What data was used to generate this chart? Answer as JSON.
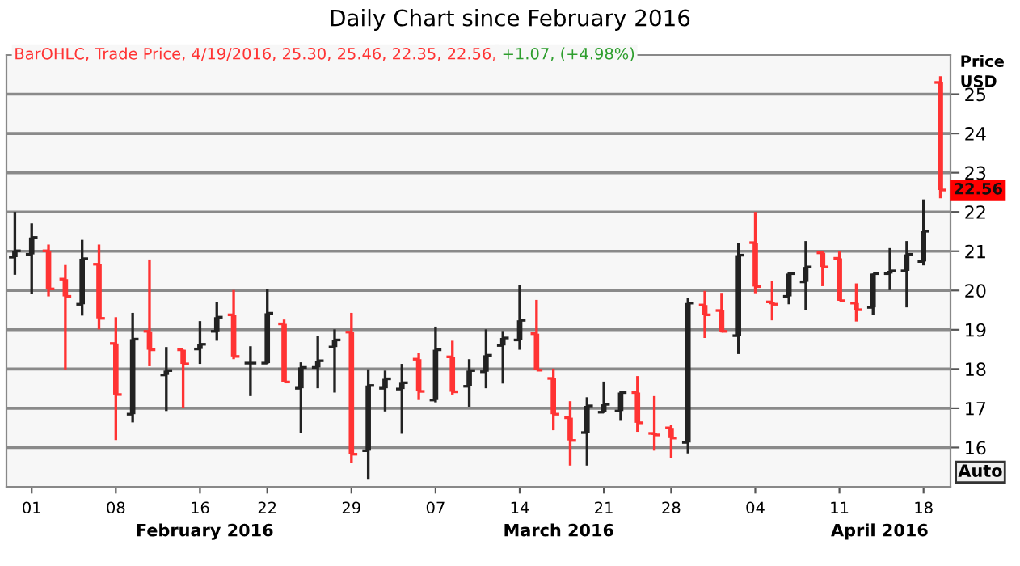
{
  "chart_data": {
    "type": "candlestick",
    "title": "Daily Chart since February 2016",
    "subtitle": "BarOHLC, Trade Price, 4/19/2016, 25.30, 25.46, 22.35, 22.56,",
    "ylabel": "Price\nUSD",
    "categories": [
      null,
      "01",
      null,
      null,
      null,
      null,
      "08",
      null,
      null,
      null,
      null,
      "16",
      null,
      null,
      null,
      "22",
      null,
      null,
      null,
      null,
      "29",
      null,
      null,
      null,
      null,
      "07",
      null,
      null,
      null,
      null,
      "14",
      null,
      null,
      null,
      null,
      "21",
      null,
      null,
      null,
      "28",
      null,
      null,
      null,
      null,
      "04",
      null,
      null,
      null,
      null,
      "11",
      null,
      null,
      null,
      null,
      "18",
      null
    ],
    "ohlc": [
      [
        20.85,
        22.0,
        20.4,
        21.01
      ],
      [
        20.92,
        21.71,
        19.92,
        21.35
      ],
      [
        21.01,
        21.17,
        19.85,
        20.04
      ],
      [
        20.29,
        20.65,
        17.99,
        19.85
      ],
      [
        19.65,
        21.29,
        19.36,
        20.81
      ],
      [
        20.67,
        21.17,
        19.01,
        19.29
      ],
      [
        18.65,
        19.32,
        16.19,
        17.35
      ],
      [
        16.85,
        19.43,
        16.64,
        18.76
      ],
      [
        18.96,
        20.79,
        18.07,
        18.49
      ],
      [
        17.85,
        18.56,
        16.93,
        17.96
      ],
      [
        18.49,
        18.49,
        17.0,
        18.13
      ],
      [
        18.51,
        19.22,
        18.13,
        18.63
      ],
      [
        18.96,
        19.71,
        18.72,
        19.32
      ],
      [
        19.38,
        20.01,
        18.25,
        18.32
      ],
      [
        18.15,
        18.58,
        17.31,
        18.15
      ],
      [
        18.15,
        20.04,
        18.13,
        19.42
      ],
      [
        19.15,
        19.26,
        17.67,
        17.67
      ],
      [
        17.51,
        18.17,
        16.36,
        18.04
      ],
      [
        18.04,
        18.85,
        17.51,
        18.21
      ],
      [
        18.56,
        19.01,
        17.4,
        18.74
      ],
      [
        18.94,
        19.43,
        15.6,
        15.83
      ],
      [
        15.92,
        17.99,
        15.18,
        17.58
      ],
      [
        17.51,
        17.96,
        16.92,
        17.75
      ],
      [
        17.49,
        18.13,
        16.35,
        17.65
      ],
      [
        18.25,
        18.4,
        17.21,
        17.43
      ],
      [
        17.21,
        19.08,
        17.15,
        18.49
      ],
      [
        18.31,
        18.72,
        17.35,
        17.42
      ],
      [
        17.56,
        18.25,
        17.04,
        17.96
      ],
      [
        17.93,
        19.01,
        17.51,
        18.35
      ],
      [
        18.6,
        18.97,
        17.63,
        18.79
      ],
      [
        18.74,
        20.15,
        18.49,
        19.24
      ],
      [
        18.9,
        19.76,
        17.97,
        17.97
      ],
      [
        17.76,
        18.01,
        16.44,
        16.85
      ],
      [
        16.76,
        17.18,
        15.54,
        16.18
      ],
      [
        16.38,
        17.28,
        15.54,
        17.06
      ],
      [
        16.9,
        17.68,
        16.88,
        17.1
      ],
      [
        16.93,
        17.44,
        16.68,
        17.4
      ],
      [
        17.4,
        17.82,
        16.4,
        16.63
      ],
      [
        16.36,
        17.31,
        15.92,
        16.32
      ],
      [
        16.5,
        16.57,
        15.74,
        16.24
      ],
      [
        16.13,
        19.81,
        15.85,
        19.68
      ],
      [
        19.63,
        19.99,
        18.79,
        19.38
      ],
      [
        19.49,
        19.94,
        18.93,
        18.96
      ],
      [
        18.85,
        21.22,
        18.38,
        20.9
      ],
      [
        21.22,
        22.0,
        19.93,
        20.1
      ],
      [
        19.71,
        20.25,
        19.24,
        19.65
      ],
      [
        19.85,
        20.46,
        19.65,
        20.43
      ],
      [
        20.22,
        21.26,
        19.49,
        20.6
      ],
      [
        20.96,
        21.01,
        20.11,
        20.6
      ],
      [
        20.82,
        21.01,
        19.74,
        19.74
      ],
      [
        19.68,
        20.18,
        19.21,
        19.51
      ],
      [
        19.57,
        20.43,
        19.38,
        20.43
      ],
      [
        20.43,
        21.08,
        20.01,
        20.5
      ],
      [
        20.5,
        21.26,
        19.57,
        20.92
      ],
      [
        20.74,
        22.32,
        20.64,
        21.51
      ],
      [
        25.3,
        25.46,
        22.35,
        22.56
      ]
    ],
    "colors": [
      "#222222",
      "#222222",
      "#ff3333",
      "#ff3333",
      "#222222",
      "#ff3333",
      "#ff3333",
      "#222222",
      "#ff3333",
      "#222222",
      "#ff3333",
      "#222222",
      "#222222",
      "#ff3333",
      "#222222",
      "#222222",
      "#ff3333",
      "#222222",
      "#222222",
      "#222222",
      "#ff3333",
      "#222222",
      "#222222",
      "#222222",
      "#ff3333",
      "#222222",
      "#ff3333",
      "#222222",
      "#222222",
      "#222222",
      "#222222",
      "#ff3333",
      "#ff3333",
      "#ff3333",
      "#222222",
      "#222222",
      "#222222",
      "#ff3333",
      "#ff3333",
      "#ff3333",
      "#222222",
      "#ff3333",
      "#ff3333",
      "#222222",
      "#ff3333",
      "#ff3333",
      "#222222",
      "#222222",
      "#ff3333",
      "#ff3333",
      "#ff3333",
      "#222222",
      "#222222",
      "#222222",
      "#222222",
      "#ff3333"
    ],
    "ylim": [
      15,
      26
    ],
    "yticks": [
      16,
      17,
      18,
      19,
      20,
      21,
      22,
      23,
      24,
      25
    ],
    "grid": "y",
    "annotations": [
      "+1.07, (+4.98%)",
      {
        "text": "22.56",
        "y": 22.56
      },
      "February 2016",
      "March 2016",
      "April 2016",
      "Auto"
    ]
  }
}
